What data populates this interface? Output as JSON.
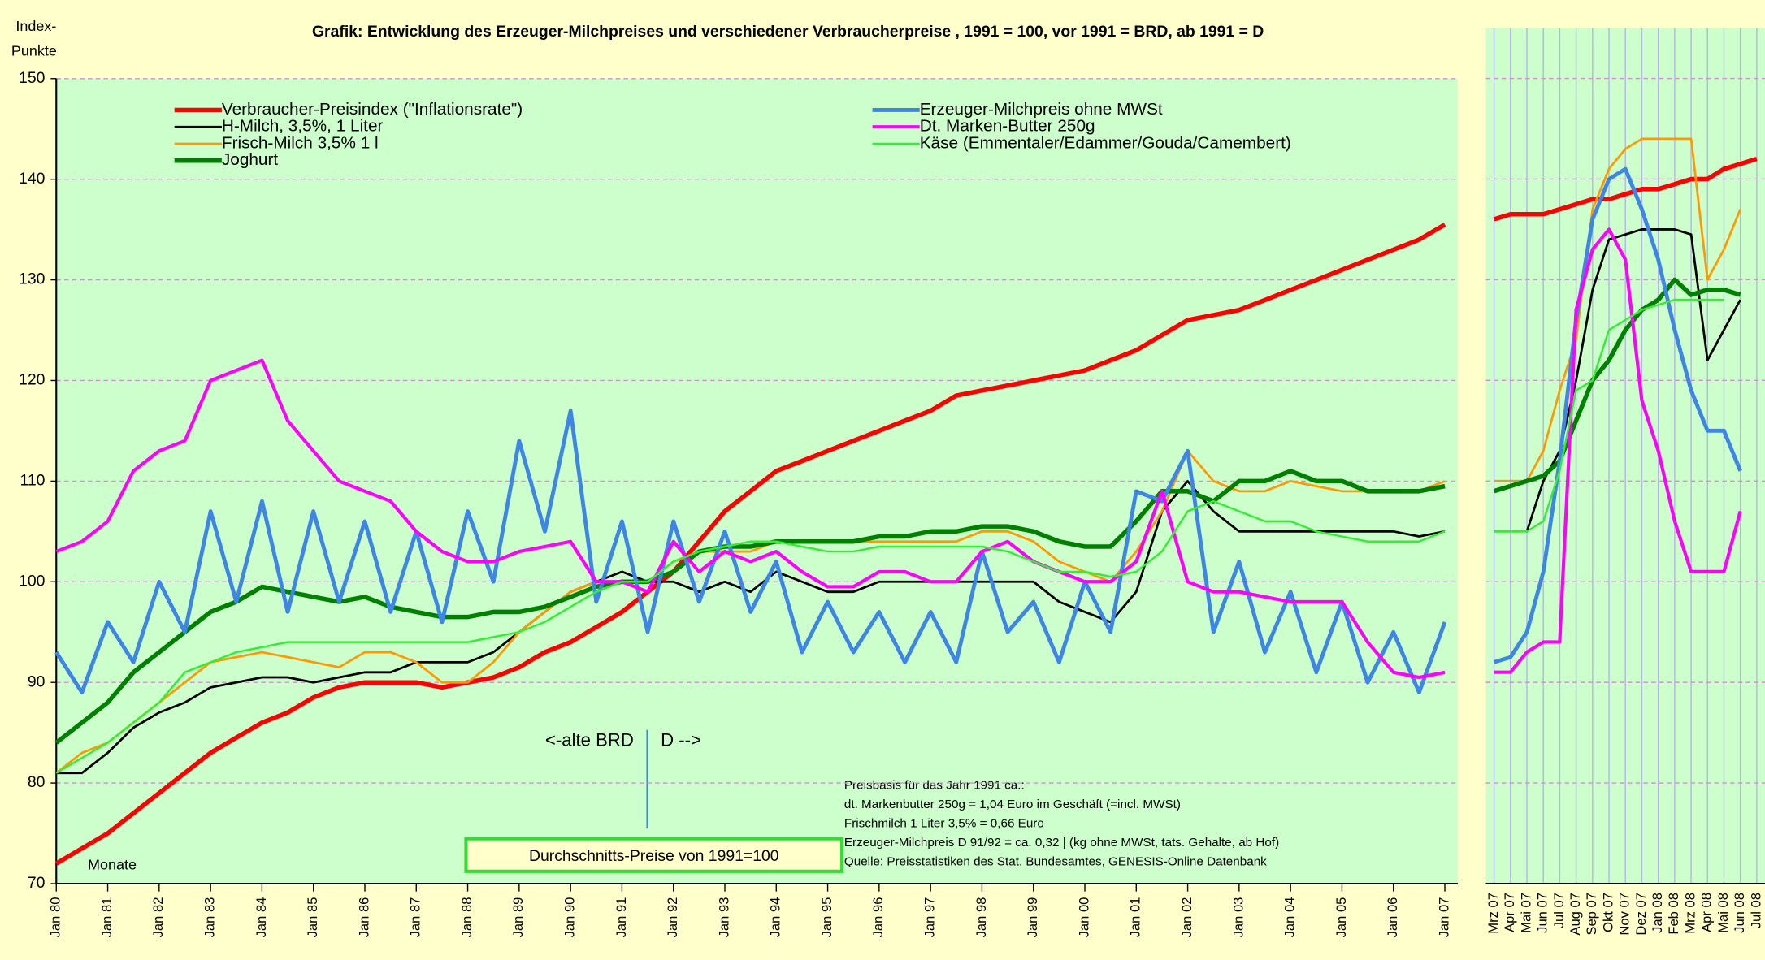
{
  "chart_data": [
    {
      "type": "line",
      "title": "Grafik: Entwicklung des Erzeuger-Milchpreises und verschiedener Verbraucherpreise ,  1991 = 100, vor 1991 = BRD, ab 1991 = D",
      "ylabel": [
        "Index-",
        "Punkte"
      ],
      "xlabel": "Monate",
      "annotations": [
        "<-alte BRD",
        "D -->",
        "Durchschnitts-Preise von 1991=100"
      ],
      "notes": [
        "Preisbasis für das Jahr 1991 ca.:",
        "dt. Markenbutter 250g = 1,04 Euro im Geschäft (=incl. MWSt)",
        "Frischmilch 1 Liter 3,5% = 0,66 Euro",
        "Erzeuger-Milchpreis D 91/92 = ca. 0,32 | (kg ohne MWSt, tats. Gehalte, ab Hof)",
        "Quelle: Preisstatistiken des Stat. Bundesamtes, GENESIS-Online Datenbank"
      ],
      "x": [
        1980,
        1980.5,
        1981,
        1981.5,
        1982,
        1982.5,
        1983,
        1983.5,
        1984,
        1984.5,
        1985,
        1985.5,
        1986,
        1986.5,
        1987,
        1987.5,
        1988,
        1988.5,
        1989,
        1989.5,
        1990,
        1990.5,
        1991,
        1991.5,
        1992,
        1992.5,
        1993,
        1993.5,
        1994,
        1994.5,
        1995,
        1995.5,
        1996,
        1996.5,
        1997,
        1997.5,
        1998,
        1998.5,
        1999,
        1999.5,
        2000,
        2000.5,
        2001,
        2001.5,
        2002,
        2002.5,
        2003,
        2003.5,
        2004,
        2004.5,
        2005,
        2005.5,
        2006,
        2006.5,
        2007
      ],
      "xlim": [
        1980,
        2007.25
      ],
      "xticks": [
        {
          "value": 1980,
          "label": "Jan 80"
        },
        {
          "value": 1981,
          "label": "Jan 81"
        },
        {
          "value": 1982,
          "label": "Jan 82"
        },
        {
          "value": 1983,
          "label": "Jan 83"
        },
        {
          "value": 1984,
          "label": "Jan 84"
        },
        {
          "value": 1985,
          "label": "Jan 85"
        },
        {
          "value": 1986,
          "label": "Jan 86"
        },
        {
          "value": 1987,
          "label": "Jan 87"
        },
        {
          "value": 1988,
          "label": "Jan 88"
        },
        {
          "value": 1989,
          "label": "Jan 89"
        },
        {
          "value": 1990,
          "label": "Jan 90"
        },
        {
          "value": 1991,
          "label": "Jan 91"
        },
        {
          "value": 1992,
          "label": "Jan 92"
        },
        {
          "value": 1993,
          "label": "Jan 93"
        },
        {
          "value": 1994,
          "label": "Jan 94"
        },
        {
          "value": 1995,
          "label": "Jan 95"
        },
        {
          "value": 1996,
          "label": "Jan 96"
        },
        {
          "value": 1997,
          "label": "Jan 97"
        },
        {
          "value": 1998,
          "label": "Jan 98"
        },
        {
          "value": 1999,
          "label": "Jan 99"
        },
        {
          "value": 2000,
          "label": "Jan 00"
        },
        {
          "value": 2001,
          "label": "Jan 01"
        },
        {
          "value": 2002,
          "label": "Jan 02"
        },
        {
          "value": 2003,
          "label": "Jan 03"
        },
        {
          "value": 2004,
          "label": "Jan 04"
        },
        {
          "value": 2005,
          "label": "Jan 05"
        },
        {
          "value": 2006,
          "label": "Jan 06"
        },
        {
          "value": 2007,
          "label": "Jan 07"
        }
      ],
      "ylim": [
        70,
        150
      ],
      "yticks": [
        70,
        80,
        90,
        100,
        110,
        120,
        130,
        140,
        150
      ],
      "grid": true,
      "series": [
        {
          "name": "Verbraucher-Preisindex (\"Inflationsrate\")",
          "color": "#ff0000",
          "values": [
            72,
            73.5,
            75,
            77,
            79,
            81,
            83,
            84.5,
            86,
            87,
            88.5,
            89.5,
            90,
            90,
            90,
            89.5,
            90,
            90.5,
            91.5,
            93,
            94,
            95.5,
            97,
            99,
            101,
            104,
            107,
            109,
            111,
            112,
            113,
            114,
            115,
            116,
            117,
            118.5,
            119,
            119.5,
            120,
            120.5,
            121,
            122,
            123,
            124.5,
            126,
            126.5,
            127,
            128,
            129,
            130,
            131,
            132,
            133,
            134,
            135.5
          ]
        },
        {
          "name": "H-Milch, 3,5%, 1 Liter",
          "color": "#000000",
          "values": [
            81,
            81,
            83,
            85.5,
            87,
            88,
            89.5,
            90,
            90.5,
            90.5,
            90,
            90.5,
            91,
            91,
            92,
            92,
            92,
            93,
            95,
            97,
            99,
            100,
            101,
            100,
            100,
            99,
            100,
            99,
            101,
            100,
            99,
            99,
            100,
            100,
            100,
            100,
            100,
            100,
            100,
            98,
            97,
            96,
            99,
            107,
            110,
            107,
            105,
            105,
            105,
            105,
            105,
            105,
            105,
            104.5,
            105
          ]
        },
        {
          "name": "Frisch-Milch 3,5% 1 l",
          "color": "#ff9900",
          "values": [
            81,
            83,
            84,
            86,
            88,
            90,
            92,
            92.5,
            93,
            92.5,
            92,
            91.5,
            93,
            93,
            92,
            90,
            90,
            92,
            95,
            97,
            99,
            100,
            100,
            100,
            102,
            103,
            103,
            103,
            104,
            104,
            104,
            104,
            104,
            104,
            104,
            104,
            105,
            105,
            104,
            102,
            101,
            100,
            103,
            107,
            113,
            110,
            109,
            109,
            110,
            109.5,
            109,
            109,
            109,
            109,
            110
          ]
        },
        {
          "name": "Joghurt",
          "color": "#008000",
          "values": [
            84,
            86,
            88,
            91,
            93,
            95,
            97,
            98,
            99.5,
            99,
            98.5,
            98,
            98.5,
            97.5,
            97,
            96.5,
            96.5,
            97,
            97,
            97.5,
            98.5,
            99.5,
            100,
            100,
            101,
            103,
            103.5,
            103.5,
            104,
            104,
            104,
            104,
            104.5,
            104.5,
            105,
            105,
            105.5,
            105.5,
            105,
            104,
            103.5,
            103.5,
            106,
            109,
            109,
            108,
            110,
            110,
            111,
            110,
            110,
            109,
            109,
            109,
            109.5
          ]
        },
        {
          "name": "Erzeuger-Milchpreis ohne MWSt",
          "color": "#3d85e6",
          "values": [
            93,
            89,
            96,
            92,
            100,
            95,
            107,
            98,
            108,
            97,
            107,
            98,
            106,
            97,
            105,
            96,
            107,
            100,
            114,
            105,
            117,
            98,
            106,
            95,
            106,
            98,
            105,
            97,
            102,
            93,
            98,
            93,
            97,
            92,
            97,
            92,
            103,
            95,
            98,
            92,
            100,
            95,
            109,
            108,
            113,
            95,
            102,
            93,
            99,
            91,
            98,
            90,
            95,
            89,
            96
          ]
        },
        {
          "name": "Dt. Marken-Butter 250g",
          "color": "#ff00ff",
          "values": [
            103,
            104,
            106,
            111,
            113,
            114,
            120,
            121,
            122,
            116,
            113,
            110,
            109,
            108,
            105,
            103,
            102,
            102,
            103,
            103.5,
            104,
            100,
            100,
            99,
            104,
            101,
            103,
            102,
            103,
            101,
            99.5,
            99.5,
            101,
            101,
            100,
            100,
            103,
            104,
            102,
            101,
            100,
            100,
            102,
            109,
            100,
            99,
            99,
            98.5,
            98,
            98,
            98,
            94,
            91,
            90.5,
            91
          ]
        },
        {
          "name": "Käse (Emmentaler/Edammer/Gouda/Camembert)",
          "color": "#33ee33",
          "values": [
            81,
            82.5,
            84,
            86,
            88,
            91,
            92,
            93,
            93.5,
            94,
            94,
            94,
            94,
            94,
            94,
            94,
            94,
            94.5,
            95,
            96,
            97.5,
            99,
            100,
            100,
            102,
            103,
            103.5,
            104,
            104,
            103.5,
            103,
            103,
            103.5,
            103.5,
            103.5,
            103.5,
            103.5,
            103,
            102,
            101,
            101,
            100.5,
            101,
            103,
            107,
            108,
            107,
            106,
            106,
            105,
            104.5,
            104,
            104,
            104,
            105
          ]
        }
      ]
    },
    {
      "type": "line",
      "categories": [
        "Mrz 07",
        "Apr 07",
        "Mai 07",
        "Jun 07",
        "Jul 07",
        "Aug 07",
        "Sep 07",
        "Okt 07",
        "Nov 07",
        "Dez 07",
        "Jan 08",
        "Feb 08",
        "Mrz 08",
        "Apr 08",
        "Mai 08",
        "Jun 08",
        "Jul 08"
      ],
      "ylim": [
        70,
        155
      ],
      "yticks": [
        70,
        80,
        90,
        100,
        110,
        120,
        130,
        140,
        150
      ],
      "grid": true,
      "series": [
        {
          "color": "#ff0000",
          "values": [
            136,
            136.5,
            136.5,
            136.5,
            137,
            137.5,
            138,
            138,
            138.5,
            139,
            139,
            139.5,
            140,
            140,
            141,
            141.5,
            142
          ]
        },
        {
          "color": "#000000",
          "values": [
            105,
            105,
            105,
            110,
            113,
            120,
            129,
            134,
            134.5,
            135,
            135,
            135,
            134.5,
            122,
            125,
            128,
            null
          ]
        },
        {
          "color": "#ff9900",
          "values": [
            110,
            110,
            110,
            113,
            119,
            124,
            137,
            141,
            143,
            144,
            144,
            144,
            144,
            130,
            133,
            137,
            null
          ]
        },
        {
          "color": "#008000",
          "values": [
            109,
            109.5,
            110,
            110.5,
            112,
            116,
            120,
            122,
            125,
            127,
            128,
            130,
            128.5,
            129,
            129,
            128.5,
            null
          ]
        },
        {
          "color": "#3d85e6",
          "values": [
            92,
            92.5,
            95,
            101,
            112,
            126,
            136,
            140,
            141,
            137,
            132,
            125,
            119,
            115,
            115,
            111,
            null
          ]
        },
        {
          "color": "#ff00ff",
          "values": [
            91,
            91,
            93,
            94,
            94,
            127,
            133,
            135,
            132,
            118,
            113,
            106,
            101,
            101,
            101,
            107,
            null
          ]
        },
        {
          "color": "#33ee33",
          "values": [
            105,
            105,
            105,
            106,
            111,
            119,
            120,
            125,
            126,
            127,
            127.5,
            128,
            128,
            128,
            128,
            null,
            null
          ]
        }
      ]
    }
  ]
}
